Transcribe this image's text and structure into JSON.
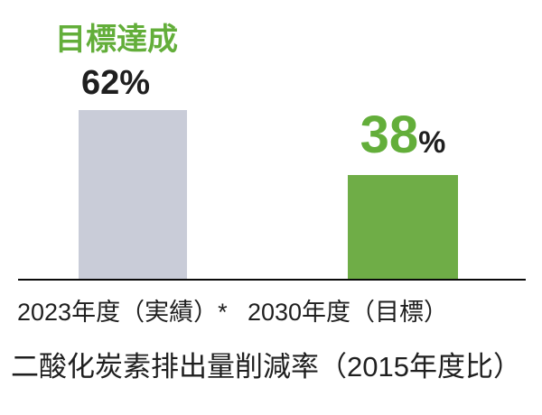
{
  "chart_data": {
    "type": "bar",
    "title": "二酸化炭素排出量削減率（2015年度比）",
    "annotation": "目標達成",
    "categories": [
      "2023年度（実績）*",
      "2030年度（目標）"
    ],
    "values": [
      62,
      38
    ],
    "unit": "%",
    "value_labels": [
      "62%",
      "38%"
    ],
    "ylim": [
      0,
      65
    ],
    "grid": false,
    "legend": "none",
    "bar_colors": [
      "#c9ccd8",
      "#6fad47"
    ],
    "annotation_color": "#63ae3a",
    "text_color": "#1f1f1f",
    "axis_line_color": "#0a0a0a"
  }
}
